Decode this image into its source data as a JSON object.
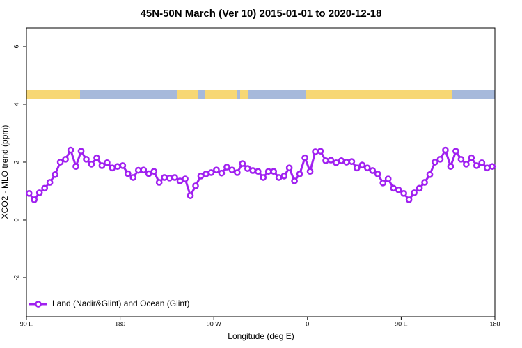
{
  "chart_data": {
    "type": "line",
    "title": "45N-50N March (Ver 10)   2015-01-01 to 2020-12-18",
    "xlabel": "Longitude (deg E)",
    "ylabel": "XCO2 - MLO trend (ppm)",
    "xlim": [
      90,
      540
    ],
    "xticks": [
      {
        "value": 90,
        "label": "90 E"
      },
      180,
      {
        "value": 270,
        "label": "90 W"
      },
      {
        "value": 360,
        "label": "0"
      },
      {
        "value": 450,
        "label": "90 E"
      },
      {
        "value": 540,
        "label": "180"
      }
    ],
    "ylim": [
      -3.35,
      6.65
    ],
    "yticks": [
      -2,
      0,
      2,
      4,
      6
    ],
    "legend": "bottom-left",
    "x": [
      92.5,
      97.5,
      102.5,
      107.5,
      112.5,
      117.5,
      122.5,
      127.5,
      132.5,
      137.5,
      142.5,
      147.5,
      152.5,
      157.5,
      162.5,
      167.5,
      172.5,
      177.5,
      182.5,
      187.5,
      192.5,
      197.5,
      202.5,
      207.5,
      212.5,
      217.5,
      222.5,
      227.5,
      232.5,
      237.5,
      242.5,
      247.5,
      252.5,
      257.5,
      262.5,
      267.5,
      272.5,
      277.5,
      282.5,
      287.5,
      292.5,
      297.5,
      302.5,
      307.5,
      312.5,
      317.5,
      322.5,
      327.5,
      332.5,
      337.5,
      342.5,
      347.5,
      352.5,
      357.5,
      362.5,
      367.5,
      372.5,
      377.5,
      382.5,
      387.5,
      392.5,
      397.5,
      402.5,
      407.5,
      412.5,
      417.5,
      422.5,
      427.5,
      432.5,
      437.5,
      442.5,
      447.5,
      452.5,
      457.5,
      462.5,
      467.5,
      472.5,
      477.5,
      482.5,
      487.5,
      492.5,
      497.5,
      502.5,
      507.5,
      512.5,
      517.5,
      522.5,
      527.5,
      532.5,
      537.5
    ],
    "series": [
      {
        "name": "Land (Nadir&Glint) and Ocean (Glint)",
        "color": "#a020f0",
        "values": [
          0.92,
          0.7,
          0.94,
          1.1,
          1.3,
          1.57,
          2.0,
          2.1,
          2.42,
          1.85,
          2.38,
          2.1,
          1.93,
          2.15,
          1.88,
          1.98,
          1.8,
          1.85,
          1.88,
          1.6,
          1.47,
          1.72,
          1.73,
          1.6,
          1.68,
          1.3,
          1.47,
          1.45,
          1.47,
          1.35,
          1.42,
          0.84,
          1.18,
          1.52,
          1.59,
          1.64,
          1.73,
          1.62,
          1.83,
          1.73,
          1.64,
          1.95,
          1.78,
          1.71,
          1.68,
          1.47,
          1.68,
          1.68,
          1.47,
          1.52,
          1.8,
          1.35,
          1.59,
          2.15,
          1.68,
          2.36,
          2.38,
          2.05,
          2.07,
          1.98,
          2.05,
          2.0,
          2.02,
          1.8,
          1.9,
          1.8,
          1.71,
          1.59,
          1.28,
          1.42,
          1.1,
          1.04,
          0.92,
          0.7,
          0.94,
          1.1,
          1.3,
          1.57,
          2.0,
          2.1,
          2.42,
          1.85,
          2.38,
          2.1,
          1.93,
          2.15,
          1.88,
          1.98,
          1.8,
          1.85
        ]
      }
    ]
  }
}
